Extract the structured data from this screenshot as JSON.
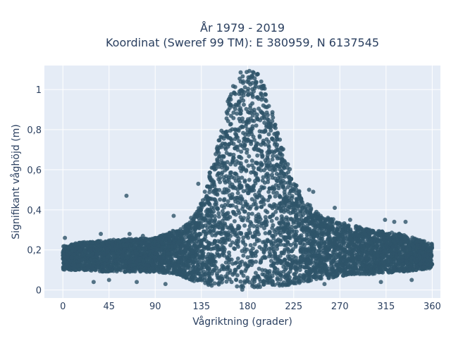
{
  "chart_data": {
    "type": "scatter",
    "title_line1": "År 1979 - 2019",
    "title_line2": "Koordinat (Sweref 99 TM): E 380959, N 6137545",
    "xlabel": "Vågriktning (grader)",
    "ylabel": "Signifikant våghöjd (m)",
    "xlim": [
      -18,
      368
    ],
    "ylim": [
      -0.04,
      1.12
    ],
    "x_ticks": [
      0,
      45,
      90,
      135,
      180,
      225,
      270,
      315,
      360
    ],
    "x_tick_labels": [
      "0",
      "45",
      "90",
      "135",
      "180",
      "225",
      "270",
      "315",
      "360"
    ],
    "y_ticks": [
      0,
      0.2,
      0.4,
      0.6,
      0.8,
      1.0
    ],
    "y_tick_labels": [
      "0",
      "0,2",
      "0,4",
      "0,6",
      "0,8",
      "1"
    ],
    "grid": true,
    "marker_color": "#2e5469",
    "plot_background": "#e5ecf6",
    "envelope": {
      "x": [
        0,
        20,
        45,
        90,
        110,
        125,
        135,
        145,
        155,
        162,
        170,
        180,
        190,
        198,
        205,
        215,
        225,
        235,
        250,
        270,
        300,
        330,
        360
      ],
      "y_upper": [
        0.22,
        0.24,
        0.25,
        0.26,
        0.3,
        0.34,
        0.45,
        0.62,
        0.82,
        0.97,
        1.08,
        1.1,
        1.08,
        1.0,
        0.88,
        0.7,
        0.55,
        0.45,
        0.38,
        0.34,
        0.3,
        0.28,
        0.23
      ],
      "y_lower": [
        0.1,
        0.1,
        0.09,
        0.09,
        0.08,
        0.05,
        0.03,
        0.02,
        0.02,
        0.01,
        0.0,
        0.0,
        0.01,
        0.01,
        0.02,
        0.02,
        0.03,
        0.04,
        0.05,
        0.07,
        0.08,
        0.09,
        0.11
      ]
    },
    "outliers": [
      {
        "x": 2,
        "y": 0.26
      },
      {
        "x": 30,
        "y": 0.04
      },
      {
        "x": 37,
        "y": 0.28
      },
      {
        "x": 45,
        "y": 0.05
      },
      {
        "x": 62,
        "y": 0.47
      },
      {
        "x": 65,
        "y": 0.28
      },
      {
        "x": 72,
        "y": 0.04
      },
      {
        "x": 78,
        "y": 0.27
      },
      {
        "x": 108,
        "y": 0.37
      },
      {
        "x": 125,
        "y": 0.36
      },
      {
        "x": 132,
        "y": 0.53
      },
      {
        "x": 240,
        "y": 0.5
      },
      {
        "x": 244,
        "y": 0.49
      },
      {
        "x": 265,
        "y": 0.41
      },
      {
        "x": 280,
        "y": 0.35
      },
      {
        "x": 300,
        "y": 0.25
      },
      {
        "x": 314,
        "y": 0.35
      },
      {
        "x": 323,
        "y": 0.34
      },
      {
        "x": 334,
        "y": 0.34
      },
      {
        "x": 340,
        "y": 0.05
      },
      {
        "x": 310,
        "y": 0.04
      },
      {
        "x": 255,
        "y": 0.03
      },
      {
        "x": 100,
        "y": 0.03
      }
    ]
  }
}
